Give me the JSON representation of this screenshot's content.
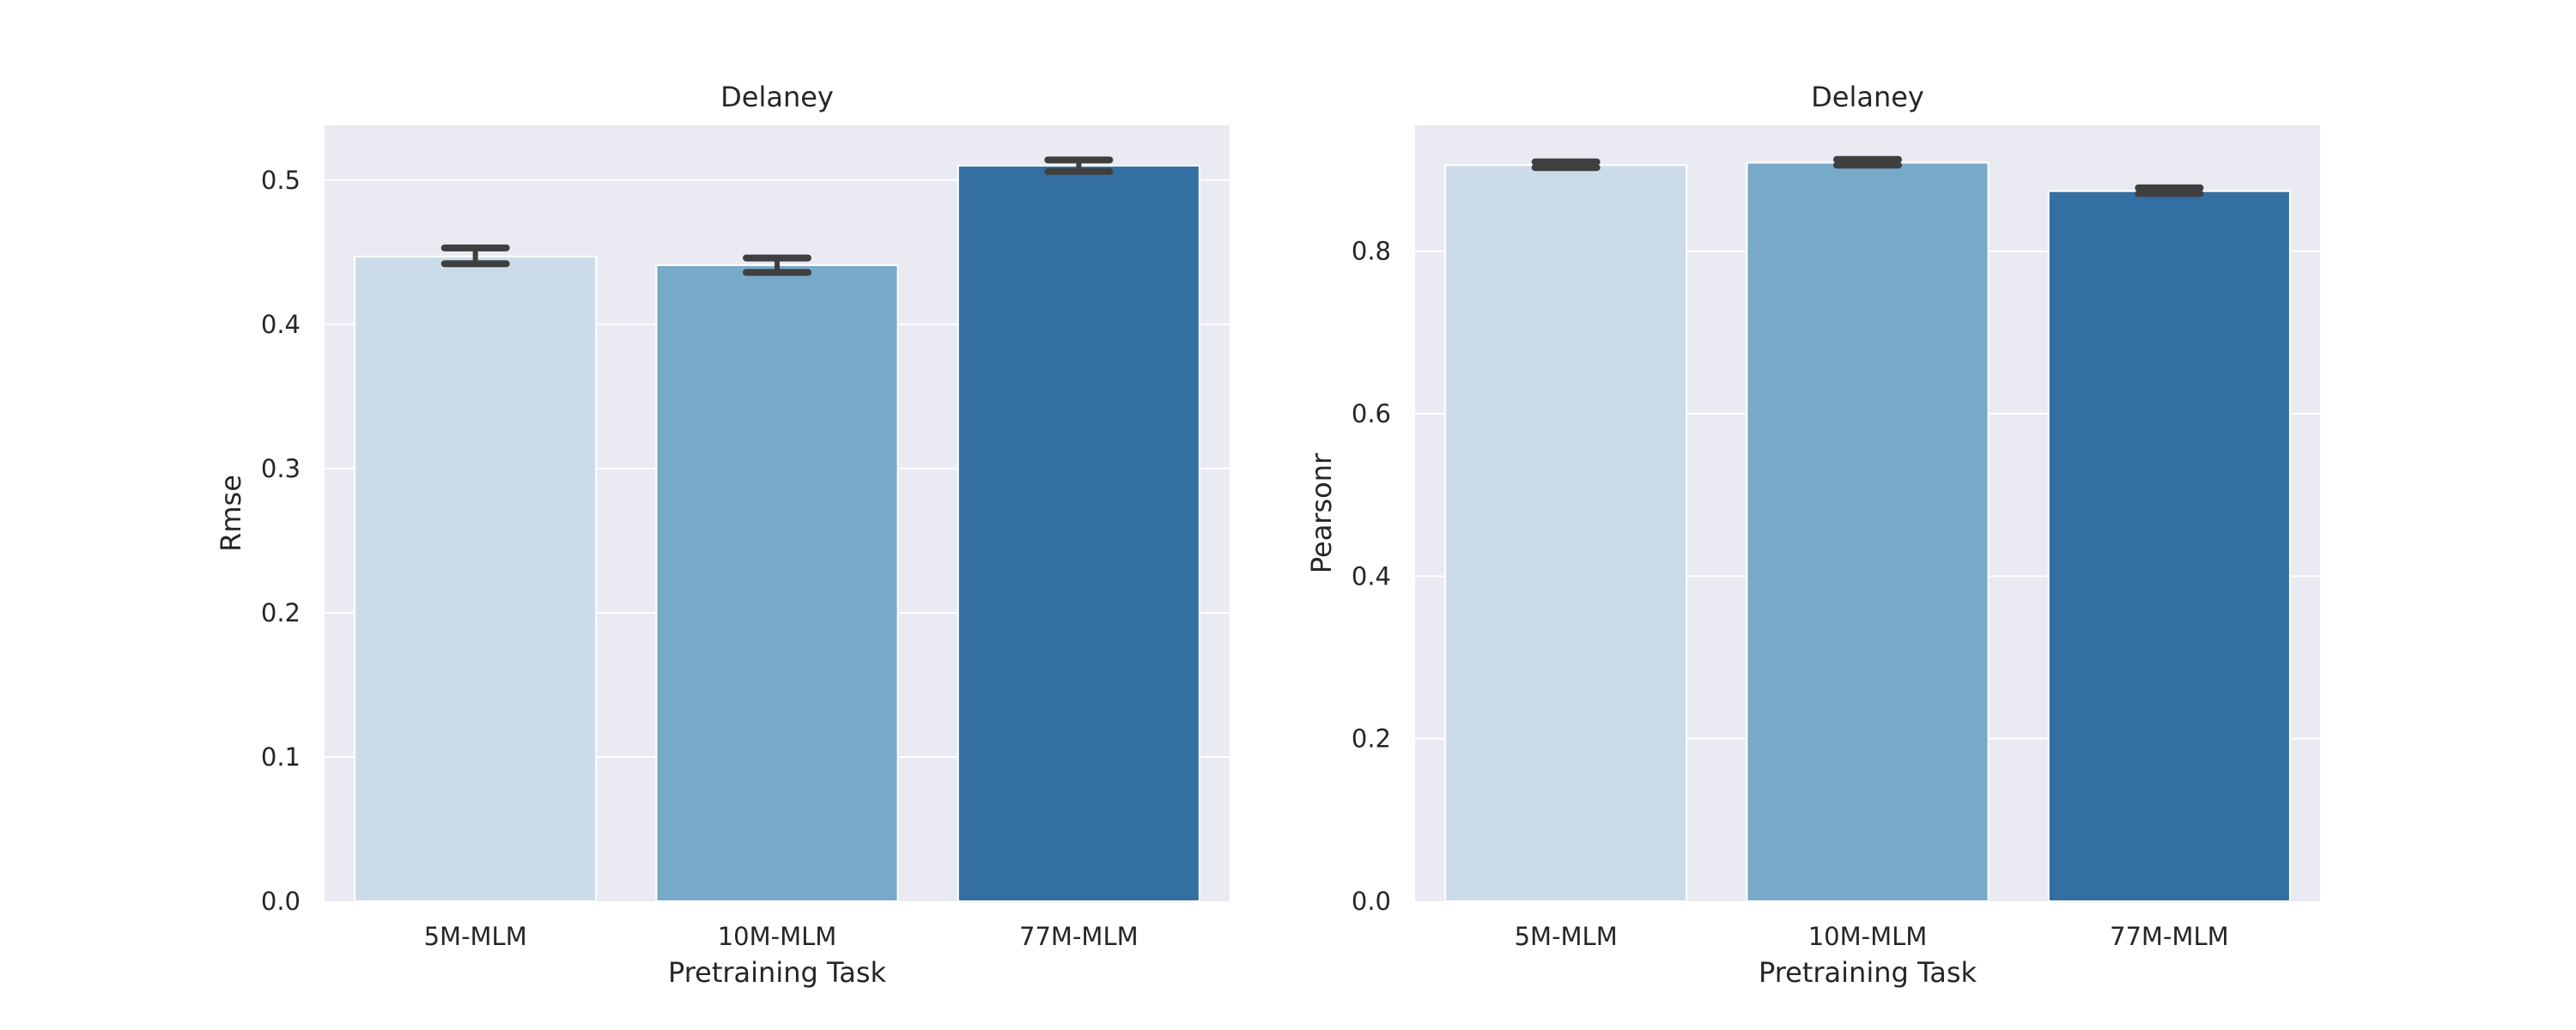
{
  "chart_data": [
    {
      "type": "bar",
      "title": "Delaney",
      "xlabel": "Pretraining Task",
      "ylabel": "Rmse",
      "categories": [
        "5M-MLM",
        "10M-MLM",
        "77M-MLM"
      ],
      "values": [
        0.447,
        0.441,
        0.51
      ],
      "error_low": [
        0.442,
        0.436,
        0.506
      ],
      "error_high": [
        0.453,
        0.446,
        0.514
      ],
      "ylim": [
        0,
        0.538
      ],
      "yticks": [
        0.0,
        0.1,
        0.2,
        0.3,
        0.4,
        0.5
      ],
      "ytick_labels": [
        "0.0",
        "0.1",
        "0.2",
        "0.3",
        "0.4",
        "0.5"
      ],
      "grid": true,
      "bar_colors": [
        "#cbdbea",
        "#77a9c9",
        "#336fa2"
      ]
    },
    {
      "type": "bar",
      "title": "Delaney",
      "xlabel": "Pretraining Task",
      "ylabel": "Pearsonr",
      "categories": [
        "5M-MLM",
        "10M-MLM",
        "77M-MLM"
      ],
      "values": [
        0.906,
        0.909,
        0.874
      ],
      "error_low": [
        0.903,
        0.906,
        0.871
      ],
      "error_high": [
        0.91,
        0.913,
        0.878
      ],
      "ylim": [
        0,
        0.955
      ],
      "yticks": [
        0.0,
        0.2,
        0.4,
        0.6,
        0.8
      ],
      "ytick_labels": [
        "0.0",
        "0.2",
        "0.4",
        "0.6",
        "0.8"
      ],
      "grid": true,
      "bar_colors": [
        "#cbdbea",
        "#77a9c9",
        "#336fa2"
      ]
    }
  ],
  "colors": {
    "plot_background": "#eaeaf2",
    "gridline": "#ffffff",
    "error_bar": "#3f3f3f",
    "text": "#262626"
  }
}
